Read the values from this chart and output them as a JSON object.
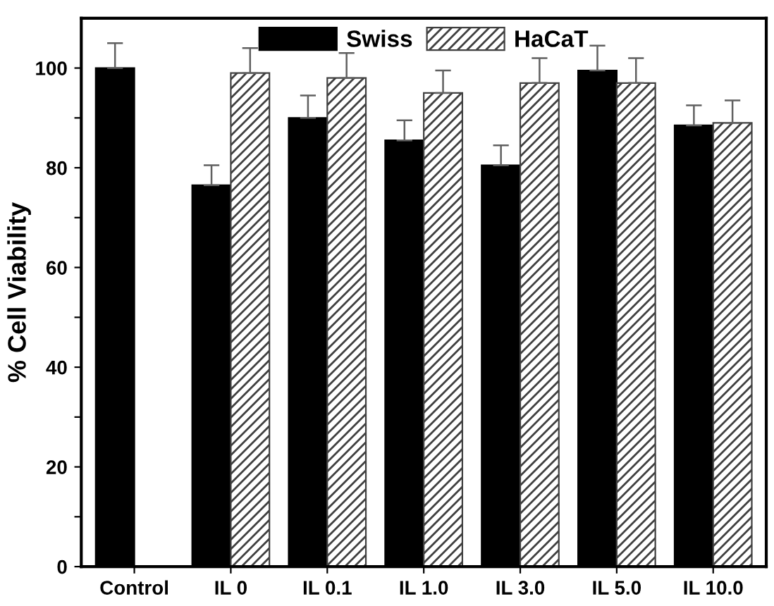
{
  "chart_data": {
    "type": "bar",
    "ylabel": "% Cell Viability",
    "categories": [
      "Control",
      "IL 0",
      "IL 0.1",
      "IL 1.0",
      "IL 3.0",
      "IL 5.0",
      "IL 10.0"
    ],
    "series": [
      {
        "name": "Swiss",
        "color": "#000000",
        "values": [
          100,
          76.5,
          90,
          85.5,
          80.5,
          99.5,
          88.5
        ],
        "errors": [
          5,
          4,
          4.5,
          4,
          4,
          5,
          4
        ]
      },
      {
        "name": "HaCaT",
        "color": "#404040",
        "values": [
          null,
          99,
          98,
          95,
          97,
          97,
          89
        ],
        "errors": [
          null,
          5,
          5,
          4.5,
          5,
          5,
          4.5
        ]
      }
    ],
    "ylim": [
      0,
      110
    ],
    "yticks": [
      0,
      {
        "value": 10,
        "label": null
      },
      20,
      {
        "value": 30,
        "label": null
      },
      40,
      {
        "value": 50,
        "label": null
      },
      60,
      {
        "value": 70,
        "label": null
      },
      80,
      {
        "value": 90,
        "label": null
      },
      100
    ],
    "legend": "top",
    "grid": false
  }
}
